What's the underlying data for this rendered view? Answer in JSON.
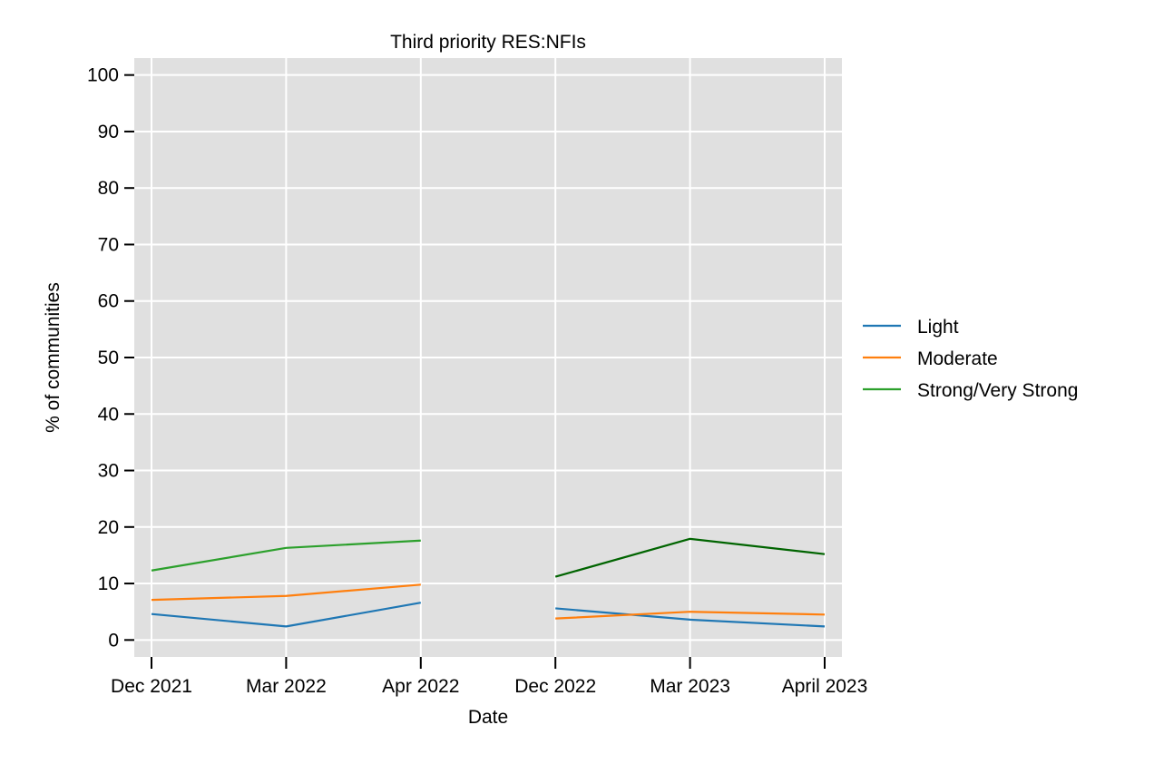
{
  "chart_data": {
    "type": "line",
    "title": "Third priority RES:NFIs",
    "xlabel": "Date",
    "ylabel": "% of communities",
    "categories": [
      "Dec 2021",
      "Mar 2022",
      "Apr 2022",
      "Dec 2022",
      "Mar 2023",
      "April 2023"
    ],
    "ylim": [
      -3,
      103
    ],
    "yticks": [
      "0",
      "10",
      "20",
      "30",
      "40",
      "50",
      "60",
      "70",
      "80",
      "90",
      "100"
    ],
    "grid": true,
    "background": "#e0e0e0",
    "legend_placement": "right",
    "legend": [
      {
        "label": "Light",
        "color": "#1f77b4"
      },
      {
        "label": "Moderate",
        "color": "#ff7f0e"
      },
      {
        "label": "Strong/Very Strong",
        "color": "#2ca02c"
      }
    ],
    "series": [
      {
        "name": "Light",
        "color": "#1f77b4",
        "segments": [
          {
            "x": [
              0,
              1,
              2
            ],
            "values": [
              4.6,
              2.4,
              6.6
            ]
          },
          {
            "x": [
              3,
              4,
              5
            ],
            "values": [
              5.6,
              3.6,
              2.4
            ]
          }
        ]
      },
      {
        "name": "Moderate",
        "color": "#ff7f0e",
        "segments": [
          {
            "x": [
              0,
              1,
              2
            ],
            "values": [
              7.1,
              7.8,
              9.8
            ]
          },
          {
            "x": [
              3,
              4,
              5
            ],
            "values": [
              3.8,
              5.0,
              4.5
            ]
          }
        ]
      },
      {
        "name": "Strong/Very Strong",
        "color": "#2ca02c",
        "segments": [
          {
            "x": [
              0,
              1,
              2
            ],
            "values": [
              12.3,
              16.3,
              17.6
            ]
          }
        ]
      },
      {
        "name": "Strong/Very Strong",
        "color": "#006400",
        "segments": [
          {
            "x": [
              3,
              4,
              5
            ],
            "values": [
              11.2,
              17.9,
              15.2
            ]
          }
        ]
      }
    ]
  }
}
